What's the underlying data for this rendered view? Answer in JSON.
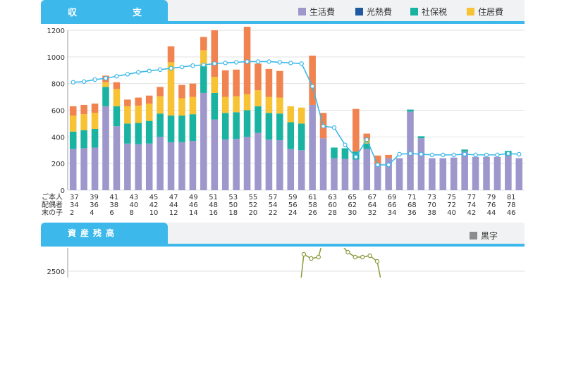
{
  "income_chart": {
    "tab_left": "収",
    "tab_right": "支",
    "legend": [
      {
        "label": "生活費",
        "color": "#9e97cc"
      },
      {
        "label": "光熱費",
        "color": "#1f5aa0"
      },
      {
        "label": "社保税",
        "color": "#1ab3a2"
      },
      {
        "label": "住居費",
        "color": "#f7c233"
      }
    ]
  },
  "assets_chart": {
    "tab_label": "資産残高",
    "legend_label": "黒字",
    "legend_color": "#8c8c8c",
    "y_tick_label": "2500"
  },
  "row_labels": [
    "ご本人",
    "配偶者",
    "末の子"
  ],
  "chart_data": [
    {
      "type": "bar",
      "stacked": true,
      "ylim": [
        0,
        1200
      ],
      "y_ticks": [
        0,
        200,
        400,
        600,
        800,
        1000,
        1200
      ],
      "grid": true,
      "age_rows": {
        "self": [
          "37",
          "39",
          "41",
          "43",
          "45",
          "47",
          "49",
          "51",
          "53",
          "55",
          "57",
          "59",
          "61",
          "63",
          "65",
          "67",
          "69",
          "71",
          "73",
          "75",
          "77",
          "79",
          "81"
        ],
        "spouse": [
          "34",
          "36",
          "38",
          "40",
          "42",
          "44",
          "46",
          "48",
          "50",
          "52",
          "54",
          "56",
          "58",
          "60",
          "62",
          "64",
          "66",
          "68",
          "70",
          "72",
          "74",
          "76",
          "78"
        ],
        "child": [
          "2",
          "4",
          "6",
          "8",
          "10",
          "12",
          "14",
          "16",
          "18",
          "20",
          "22",
          "24",
          "26",
          "28",
          "30",
          "32",
          "34",
          "36",
          "38",
          "40",
          "42",
          "44",
          "46"
        ]
      },
      "series": [
        {
          "name": "生活費",
          "color": "#9e97cc",
          "values": [
            310,
            315,
            320,
            630,
            480,
            350,
            345,
            350,
            400,
            360,
            360,
            370,
            730,
            530,
            380,
            385,
            400,
            430,
            380,
            375,
            310,
            300,
            640,
            390,
            240,
            235,
            230,
            310,
            200,
            240,
            240,
            590,
            390,
            240,
            240,
            245,
            290,
            250,
            250,
            250,
            260,
            240
          ]
        },
        {
          "name": "光熱費",
          "color": "#1f5aa0",
          "values": [
            0,
            0,
            0,
            0,
            0,
            0,
            0,
            0,
            0,
            0,
            0,
            0,
            0,
            0,
            0,
            0,
            0,
            0,
            0,
            0,
            0,
            0,
            0,
            0,
            0,
            0,
            0,
            0,
            0,
            0,
            0,
            0,
            0,
            0,
            0,
            0,
            0,
            0,
            0,
            0,
            0,
            0
          ]
        },
        {
          "name": "社保税",
          "color": "#1ab3a2",
          "values": [
            130,
            135,
            140,
            145,
            150,
            150,
            160,
            170,
            175,
            200,
            200,
            200,
            200,
            200,
            200,
            200,
            200,
            200,
            200,
            200,
            200,
            200,
            0,
            0,
            80,
            80,
            60,
            40,
            0,
            0,
            0,
            15,
            15,
            0,
            0,
            0,
            15,
            0,
            0,
            0,
            35,
            0
          ]
        },
        {
          "name": "住居費",
          "color": "#f7c233",
          "values": [
            120,
            120,
            120,
            35,
            130,
            130,
            130,
            130,
            130,
            400,
            130,
            130,
            120,
            120,
            120,
            120,
            120,
            120,
            120,
            120,
            120,
            120,
            0,
            0,
            0,
            0,
            0,
            30,
            0,
            0,
            0,
            0,
            0,
            0,
            0,
            0,
            0,
            0,
            0,
            0,
            0,
            0
          ]
        },
        {
          "name": "",
          "color": "#f08350",
          "values": [
            70,
            70,
            70,
            50,
            50,
            50,
            60,
            60,
            70,
            120,
            100,
            100,
            100,
            350,
            200,
            200,
            530,
            200,
            210,
            200,
            0,
            0,
            370,
            190,
            0,
            0,
            320,
            45,
            60,
            25,
            0,
            0,
            0,
            0,
            0,
            0,
            0,
            0,
            0,
            0,
            0,
            0
          ]
        }
      ],
      "line": {
        "color": "#3cb8ea",
        "values": [
          810,
          815,
          830,
          840,
          855,
          870,
          885,
          895,
          905,
          915,
          925,
          935,
          940,
          950,
          955,
          960,
          965,
          965,
          965,
          960,
          955,
          950,
          780,
          480,
          470,
          340,
          250,
          380,
          190,
          190,
          270,
          275,
          270,
          265,
          265,
          265,
          270,
          265,
          265,
          265,
          275,
          270
        ]
      }
    },
    {
      "type": "line",
      "y_ticks": [
        2500
      ],
      "series": [
        {
          "name": "黒字",
          "color": "#8a9a3c",
          "values": [
            2740,
            2680,
            2700,
            3100,
            2910,
            2890,
            2770,
            2700,
            2700,
            2720,
            2640
          ]
        }
      ]
    }
  ]
}
